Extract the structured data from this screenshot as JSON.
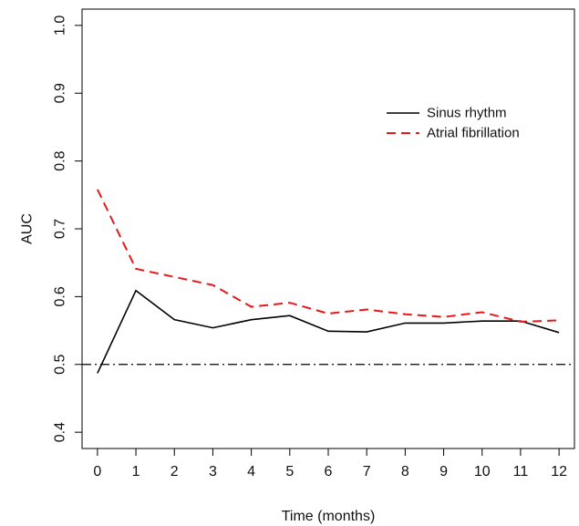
{
  "chart_data": {
    "type": "line",
    "title": "",
    "xlabel": "Time (months)",
    "ylabel": "AUC",
    "x": [
      0,
      1,
      2,
      3,
      4,
      5,
      6,
      7,
      8,
      9,
      10,
      11,
      12
    ],
    "xticks": [
      0,
      1,
      2,
      3,
      4,
      5,
      6,
      7,
      8,
      9,
      10,
      11,
      12
    ],
    "yticks": [
      0.4,
      0.5,
      0.6,
      0.7,
      0.8,
      0.9,
      1.0
    ],
    "ytick_labels": [
      "0.4",
      "0.5",
      "0.6",
      "0.7",
      "0.8",
      "0.9",
      "1.0"
    ],
    "xlim": [
      -0.4,
      12.4
    ],
    "ylim": [
      0.376,
      1.024
    ],
    "grid": false,
    "legend": "top-right",
    "series": [
      {
        "name": "Sinus rhythm",
        "color": "#000000",
        "line_style": "solid",
        "values": [
          0.487,
          0.609,
          0.566,
          0.554,
          0.566,
          0.572,
          0.549,
          0.548,
          0.561,
          0.561,
          0.564,
          0.564,
          0.547
        ]
      },
      {
        "name": "Atrial fibrillation",
        "color": "#e41a1c",
        "line_style": "dashed",
        "values": [
          0.758,
          0.641,
          0.629,
          0.617,
          0.585,
          0.591,
          0.575,
          0.581,
          0.574,
          0.57,
          0.577,
          0.563,
          0.565
        ]
      }
    ],
    "reference_line": {
      "y": 0.5,
      "color": "#000000",
      "line_style": "dash-dot"
    }
  }
}
